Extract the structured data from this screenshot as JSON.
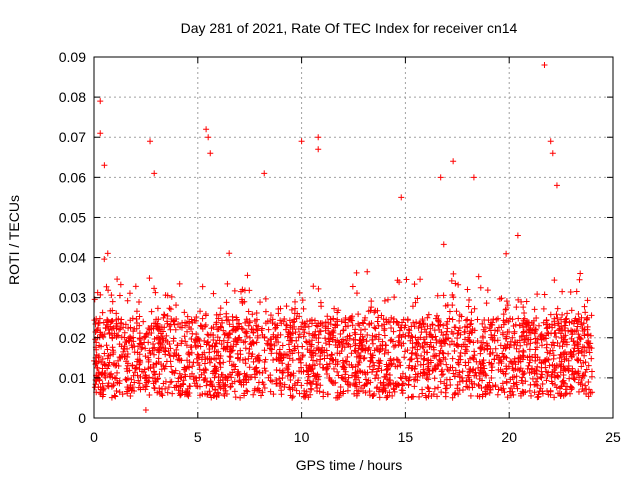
{
  "chart_data": {
    "type": "scatter",
    "title": "Day 281 of 2021, Rate Of TEC Index for receiver cn14",
    "xlabel": "GPS time / hours",
    "ylabel": "ROTI / TECUs",
    "xlim": [
      0,
      25
    ],
    "ylim": [
      0,
      0.09
    ],
    "xticks": [
      0,
      5,
      10,
      15,
      20,
      25
    ],
    "xtick_labels": [
      "0",
      "5",
      "10",
      "15",
      "20",
      "25"
    ],
    "yticks": [
      0,
      0.01,
      0.02,
      0.03,
      0.04,
      0.05,
      0.06,
      0.07,
      0.08,
      0.09
    ],
    "ytick_labels": [
      "0",
      "0.01",
      "0.02",
      "0.03",
      "0.04",
      "0.05",
      "0.06",
      "0.07",
      "0.08",
      "0.09"
    ],
    "grid": true,
    "marker": "+",
    "series": [
      {
        "name": "cn14",
        "color": "#ff0000",
        "x_range": [
          0,
          24
        ],
        "typical_range": [
          0.005,
          0.025
        ],
        "min_observed": 0.002,
        "max_observed": 0.088,
        "notable_points": [
          {
            "x": 0.3,
            "y": 0.079
          },
          {
            "x": 0.3,
            "y": 0.071
          },
          {
            "x": 0.5,
            "y": 0.063
          },
          {
            "x": 2.7,
            "y": 0.069
          },
          {
            "x": 2.9,
            "y": 0.061
          },
          {
            "x": 5.4,
            "y": 0.072
          },
          {
            "x": 5.5,
            "y": 0.07
          },
          {
            "x": 5.6,
            "y": 0.066
          },
          {
            "x": 8.2,
            "y": 0.061
          },
          {
            "x": 10.0,
            "y": 0.069
          },
          {
            "x": 10.8,
            "y": 0.07
          },
          {
            "x": 10.8,
            "y": 0.067
          },
          {
            "x": 14.8,
            "y": 0.055
          },
          {
            "x": 16.7,
            "y": 0.06
          },
          {
            "x": 17.3,
            "y": 0.064
          },
          {
            "x": 18.3,
            "y": 0.06
          },
          {
            "x": 21.7,
            "y": 0.088
          },
          {
            "x": 22.0,
            "y": 0.069
          },
          {
            "x": 22.1,
            "y": 0.066
          },
          {
            "x": 22.3,
            "y": 0.058
          },
          {
            "x": 2.5,
            "y": 0.002
          }
        ]
      }
    ]
  }
}
